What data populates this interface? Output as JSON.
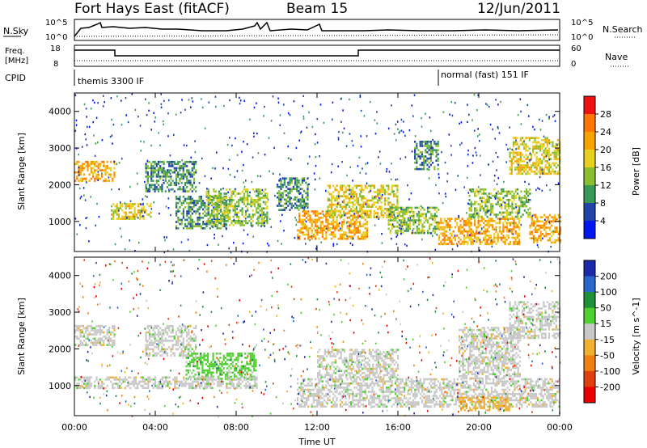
{
  "header": {
    "station": "Fort Hays East (fitACF)",
    "beam": "Beam 15",
    "date": "12/Jun/2011"
  },
  "noise_panel": {
    "left_label": "N.Sky",
    "right_label": "N.Search",
    "left_ticks": [
      "10^5",
      "10^0"
    ],
    "right_ticks": [
      "10^5",
      "10^0"
    ]
  },
  "freq_panel": {
    "left_label_line1": "Freq.",
    "left_label_line2": "[MHz]",
    "right_label": "Nave",
    "left_ticks": [
      "18",
      "8"
    ],
    "right_ticks": [
      "60",
      "0"
    ]
  },
  "cpid_panel": {
    "label": "CPID",
    "modes": [
      {
        "text": "themis 3300 IF",
        "start_hour": 0
      },
      {
        "text": "normal (fast) 151 IF",
        "start_hour": 18
      }
    ]
  },
  "chart_data": [
    {
      "type": "heatmap",
      "name": "power",
      "ylabel": "Slant Range [km]",
      "xlabel": "",
      "yticks": [
        "1000",
        "2000",
        "3000",
        "4000"
      ],
      "ylim": [
        180,
        4500
      ],
      "xlim": [
        0,
        24
      ],
      "colorbar": {
        "label": "Power [dB]",
        "ticks": [
          "28",
          "24",
          "20",
          "16",
          "12",
          "8",
          "4"
        ],
        "colors": [
          "#ee1111",
          "#ff7700",
          "#f6a300",
          "#e8d020",
          "#88c030",
          "#3a9a55",
          "#2244aa",
          "#0018ee"
        ]
      },
      "regions": [
        {
          "t0": 0.0,
          "t1": 2.0,
          "r0": 2100,
          "r1": 2650,
          "level": 5
        },
        {
          "t0": 1.8,
          "t1": 3.8,
          "r0": 1050,
          "r1": 1500,
          "level": 4
        },
        {
          "t0": 3.5,
          "t1": 6.0,
          "r0": 1800,
          "r1": 2650,
          "level": 2
        },
        {
          "t0": 5.0,
          "t1": 7.5,
          "r0": 800,
          "r1": 1700,
          "level": 2
        },
        {
          "t0": 6.5,
          "t1": 9.5,
          "r0": 900,
          "r1": 1900,
          "level": 3
        },
        {
          "t0": 10.0,
          "t1": 11.5,
          "r0": 1300,
          "r1": 2200,
          "level": 2
        },
        {
          "t0": 11.0,
          "t1": 14.5,
          "r0": 500,
          "r1": 1300,
          "level": 5
        },
        {
          "t0": 12.5,
          "t1": 16.0,
          "r0": 1100,
          "r1": 2000,
          "level": 4
        },
        {
          "t0": 15.5,
          "t1": 18.0,
          "r0": 700,
          "r1": 1400,
          "level": 3
        },
        {
          "t0": 16.8,
          "t1": 18.0,
          "r0": 2400,
          "r1": 3200,
          "level": 2
        },
        {
          "t0": 18.0,
          "t1": 22.0,
          "r0": 400,
          "r1": 1100,
          "level": 5
        },
        {
          "t0": 19.5,
          "t1": 22.5,
          "r0": 1100,
          "r1": 1900,
          "level": 3
        },
        {
          "t0": 21.5,
          "t1": 24.0,
          "r0": 2300,
          "r1": 3300,
          "level": 4
        },
        {
          "t0": 22.5,
          "t1": 24.0,
          "r0": 400,
          "r1": 1200,
          "level": 5
        }
      ]
    },
    {
      "type": "heatmap",
      "name": "velocity",
      "ylabel": "Slant Range [km]",
      "xlabel": "Time UT",
      "yticks": [
        "1000",
        "2000",
        "3000",
        "4000"
      ],
      "ylim": [
        180,
        4500
      ],
      "xlim": [
        0,
        24
      ],
      "xticks": [
        "00:00",
        "04:00",
        "08:00",
        "12:00",
        "16:00",
        "20:00",
        "00:00"
      ],
      "colorbar": {
        "label": "Velocity [m s^-1]",
        "ticks": [
          "200",
          "100",
          "50",
          "15",
          "-15",
          "-50",
          "-100",
          "-200"
        ],
        "colors": [
          "#1a2aa8",
          "#2a66cc",
          "#1f8f3a",
          "#4fd030",
          "#c8c8c8",
          "#f0b030",
          "#f08010",
          "#e04010",
          "#e80000"
        ]
      },
      "regions": [
        {
          "t0": 0.0,
          "t1": 2.0,
          "r0": 2100,
          "r1": 2650,
          "level": 4
        },
        {
          "t0": 3.5,
          "t1": 6.0,
          "r0": 1800,
          "r1": 2650,
          "level": 4
        },
        {
          "t0": 5.5,
          "t1": 9.0,
          "r0": 1200,
          "r1": 1900,
          "level": 3
        },
        {
          "t0": 0.0,
          "t1": 9.0,
          "r0": 950,
          "r1": 1250,
          "level": 4
        },
        {
          "t0": 11.0,
          "t1": 24.0,
          "r0": 400,
          "r1": 1200,
          "level": 4
        },
        {
          "t0": 12.0,
          "t1": 16.0,
          "r0": 1200,
          "r1": 2000,
          "level": 4
        },
        {
          "t0": 19.0,
          "t1": 22.0,
          "r0": 1200,
          "r1": 2600,
          "level": 4
        },
        {
          "t0": 21.5,
          "t1": 24.0,
          "r0": 2300,
          "r1": 3300,
          "level": 4
        },
        {
          "t0": 19.0,
          "t1": 21.5,
          "r0": 350,
          "r1": 700,
          "level": 5
        }
      ]
    }
  ]
}
